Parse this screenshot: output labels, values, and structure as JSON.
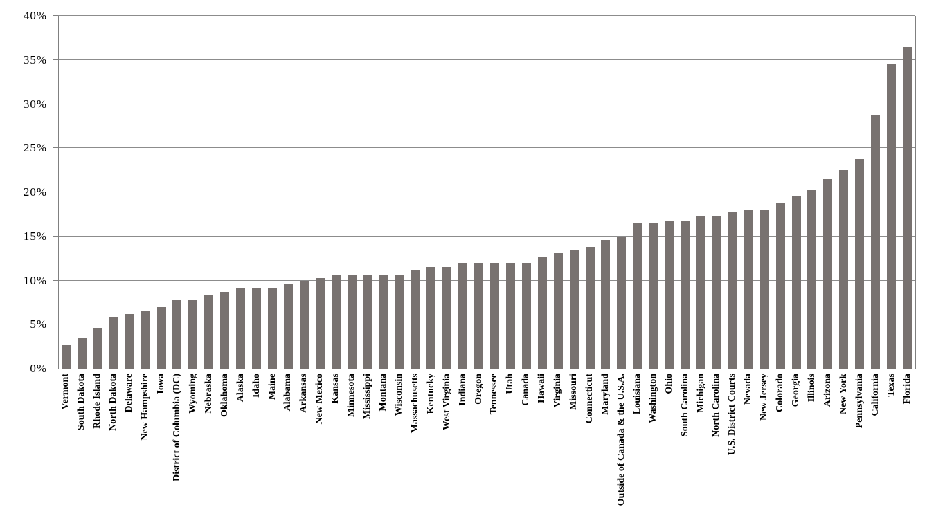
{
  "chart_data": {
    "type": "bar",
    "title": "",
    "xlabel": "",
    "ylabel": "",
    "categories": [
      "Vermont",
      "South Dakota",
      "Rhode Island",
      "North Dakota",
      "Delaware",
      "New Hampshire",
      "Iowa",
      "District of Columbia (DC)",
      "Wyoming",
      "Nebraska",
      "Oklahoma",
      "Alaska",
      "Idaho",
      "Maine",
      "Alabama",
      "Arkansas",
      "New Mexico",
      "Kansas",
      "Minnesota",
      "Mississippi",
      "Montana",
      "Wisconsin",
      "Massachusetts",
      "Kentucky",
      "West Virginia",
      "Indiana",
      "Oregon",
      "Tennessee",
      "Utah",
      "Canada",
      "Hawaii",
      "Virginia",
      "Missouri",
      "Connecticut",
      "Maryland",
      "Outside of Canada & the U.S.A.",
      "Louisiana",
      "Washington",
      "Ohio",
      "South Carolina",
      "Michigan",
      "North Carolina",
      "U.S. District Courts",
      "Nevada",
      "New Jersey",
      "Colorado",
      "Georgia",
      "Illinois",
      "Arizona",
      "New York",
      "Pennsylvania",
      "California",
      "Texas",
      "Florida"
    ],
    "values": [
      2.7,
      3.5,
      4.6,
      5.8,
      6.2,
      6.5,
      7.0,
      7.8,
      7.8,
      8.4,
      8.7,
      9.2,
      9.2,
      9.2,
      9.6,
      10.0,
      10.3,
      10.7,
      10.7,
      10.7,
      10.7,
      10.7,
      11.1,
      11.5,
      11.5,
      12.0,
      12.0,
      12.0,
      12.0,
      12.0,
      12.7,
      13.1,
      13.5,
      13.8,
      14.6,
      15.0,
      16.5,
      16.5,
      16.8,
      16.8,
      17.3,
      17.3,
      17.7,
      18.0,
      18.0,
      18.8,
      19.5,
      20.3,
      21.5,
      22.5,
      23.8,
      28.8,
      34.6,
      36.5
    ],
    "ylim": [
      0,
      40
    ],
    "ytick_step": 5,
    "ytick_labels": [
      "0%",
      "5%",
      "10%",
      "15%",
      "20%",
      "25%",
      "30%",
      "35%",
      "40%"
    ],
    "grid": true,
    "legend": "none",
    "bar_color": "#787270",
    "gridline_color": "#8c8c8c",
    "axis_color": "#808080",
    "baseline_color": "#d6d6d6",
    "value_unit": "%"
  }
}
